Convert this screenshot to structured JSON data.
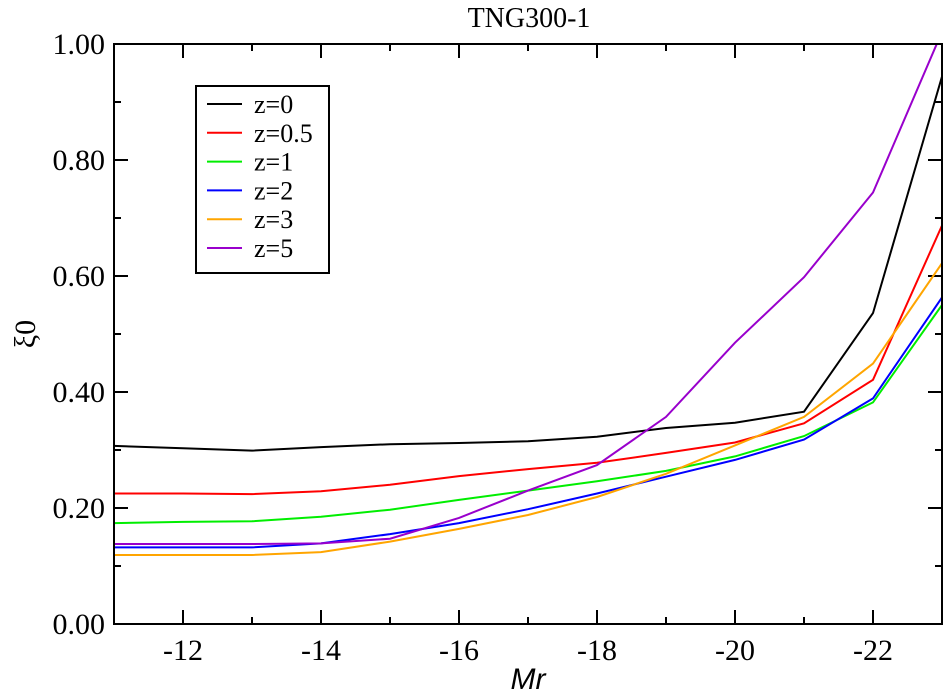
{
  "chart_data": {
    "type": "line",
    "title": "TNG300-1",
    "xlabel": "Mr",
    "ylabel": "ξ0",
    "xlim": [
      -11,
      -23
    ],
    "ylim": [
      0,
      1
    ],
    "x_ticks": [
      -12,
      -14,
      -16,
      -18,
      -20,
      -22
    ],
    "x_tick_labels": [
      "-12",
      "-14",
      "-16",
      "-18",
      "-20",
      "-22"
    ],
    "y_ticks": [
      0,
      0.2,
      0.4,
      0.6,
      0.8,
      1.0
    ],
    "y_tick_labels": [
      "0.00",
      "0.20",
      "0.40",
      "0.60",
      "0.80",
      "1.00"
    ],
    "grid": false,
    "legend_position": "top-left",
    "x": [
      -11,
      -12,
      -13,
      -14,
      -15,
      -16,
      -17,
      -18,
      -19,
      -20,
      -21,
      -22,
      -23
    ],
    "series": [
      {
        "name": "z=0",
        "color": "#000000",
        "values": [
          0.307,
          0.303,
          0.299,
          0.305,
          0.31,
          0.312,
          0.315,
          0.323,
          0.338,
          0.347,
          0.366,
          0.536,
          0.944
        ]
      },
      {
        "name": "z=0.5",
        "color": "#ff0000",
        "values": [
          0.225,
          0.225,
          0.224,
          0.229,
          0.24,
          0.255,
          0.267,
          0.278,
          0.295,
          0.313,
          0.346,
          0.421,
          0.687
        ]
      },
      {
        "name": "z=1",
        "color": "#00ee00",
        "values": [
          0.174,
          0.176,
          0.177,
          0.185,
          0.197,
          0.214,
          0.23,
          0.246,
          0.264,
          0.289,
          0.324,
          0.382,
          0.55
        ]
      },
      {
        "name": "z=2",
        "color": "#0000ff",
        "values": [
          0.132,
          0.132,
          0.132,
          0.139,
          0.155,
          0.174,
          0.198,
          0.225,
          0.254,
          0.283,
          0.318,
          0.389,
          0.563
        ]
      },
      {
        "name": "z=3",
        "color": "#ffa500",
        "values": [
          0.119,
          0.119,
          0.119,
          0.124,
          0.142,
          0.164,
          0.188,
          0.219,
          0.259,
          0.308,
          0.357,
          0.449,
          0.622
        ]
      },
      {
        "name": "z=5",
        "color": "#9900cc",
        "values": [
          0.138,
          0.138,
          0.138,
          0.139,
          0.147,
          0.183,
          0.23,
          0.274,
          0.357,
          0.485,
          0.598,
          0.744,
          1.021
        ]
      }
    ]
  }
}
